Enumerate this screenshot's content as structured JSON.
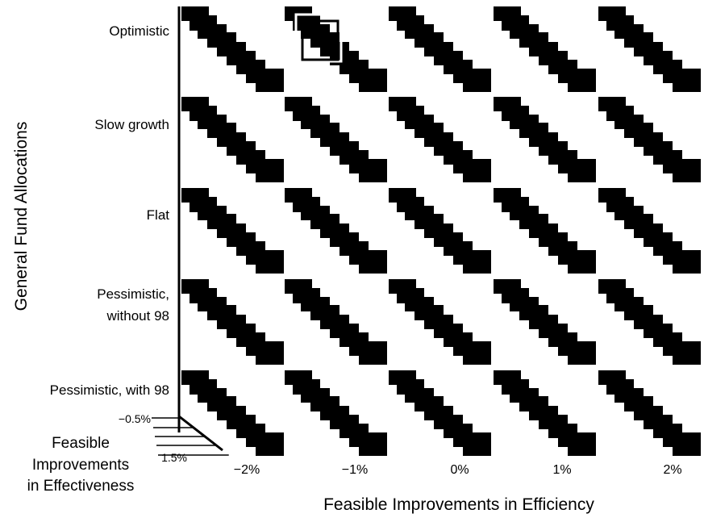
{
  "chart_data": {
    "type": "heatmap",
    "title": "",
    "description_note": "",
    "xlabel": "Feasible Improvements in Efficiency",
    "ylabel": "General Fund Allocations",
    "depth_label": [
      "Feasible",
      "Improvements",
      "in Effectiveness"
    ],
    "columns": [
      "−2%",
      "−1%",
      "0%",
      "1%",
      "2%"
    ],
    "rows": [
      "Optimistic",
      "Slow growth",
      "Flat",
      "Pessimistic, without 98",
      "Pessimistic, with 98"
    ],
    "row_label_lines": [
      [
        "Optimistic"
      ],
      [
        "Slow growth"
      ],
      [
        "Flat"
      ],
      [
        "Pessimistic,",
        "without 98"
      ],
      [
        "Pessimistic, with 98"
      ]
    ],
    "depth_ticks": [
      "−0.5%",
      "1.5%"
    ],
    "colors": {
      "filled": "#000000",
      "empty": "#ffffff"
    },
    "highlight": {
      "row": 0,
      "col": 1
    }
  }
}
